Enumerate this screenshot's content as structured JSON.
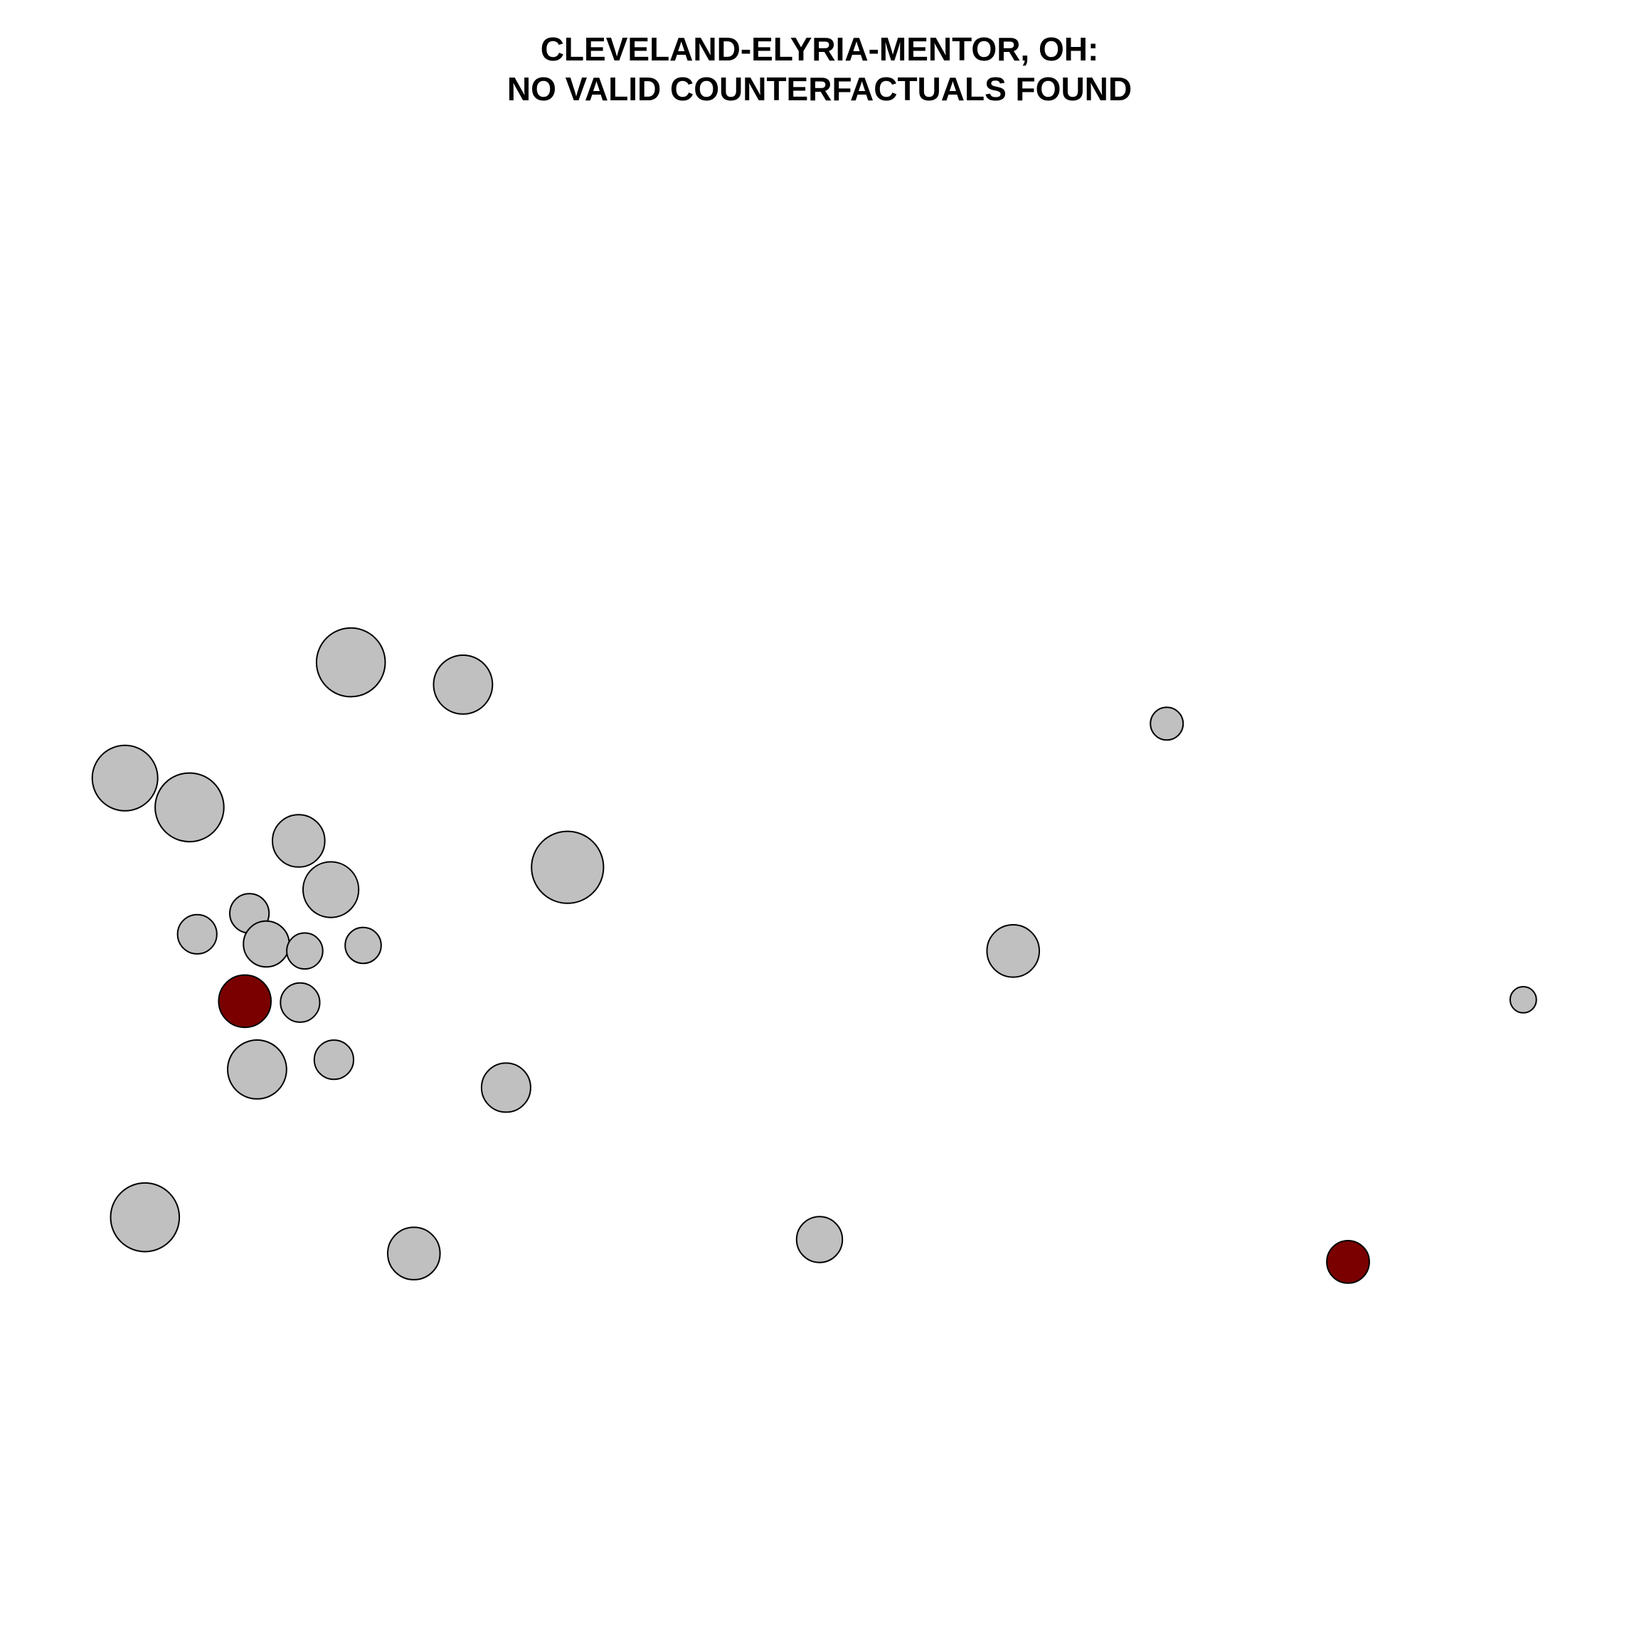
{
  "chart_data": {
    "type": "scatter",
    "title": [
      "CLEVELAND-ELYRIA-MENTOR, OH:",
      "NO VALID COUNTERFACTUALS FOUND"
    ],
    "xlabel": "",
    "ylabel": "",
    "axes_visible": false,
    "grid": false,
    "legend": "none",
    "xlim": [
      0,
      100
    ],
    "ylim": [
      0,
      100
    ],
    "colors": {
      "default": "#c0c0c0",
      "highlight": "#7a0000",
      "stroke": "#000000"
    },
    "points": [
      {
        "x": 19.5,
        "y": 62.7,
        "size": 2.1,
        "highlight": false
      },
      {
        "x": 26.8,
        "y": 61.1,
        "size": 1.8,
        "highlight": false
      },
      {
        "x": 4.8,
        "y": 54.4,
        "size": 2.0,
        "highlight": false
      },
      {
        "x": 9.0,
        "y": 52.3,
        "size": 2.1,
        "highlight": false
      },
      {
        "x": 16.1,
        "y": 49.9,
        "size": 1.6,
        "highlight": false
      },
      {
        "x": 33.6,
        "y": 48.0,
        "size": 2.2,
        "highlight": false
      },
      {
        "x": 18.2,
        "y": 46.4,
        "size": 1.7,
        "highlight": false
      },
      {
        "x": 12.9,
        "y": 44.7,
        "size": 1.2,
        "highlight": false
      },
      {
        "x": 9.5,
        "y": 43.2,
        "size": 1.2,
        "highlight": false
      },
      {
        "x": 14.0,
        "y": 42.5,
        "size": 1.4,
        "highlight": false
      },
      {
        "x": 16.5,
        "y": 42.0,
        "size": 1.1,
        "highlight": false
      },
      {
        "x": 20.3,
        "y": 42.4,
        "size": 1.1,
        "highlight": false
      },
      {
        "x": 62.6,
        "y": 42.0,
        "size": 1.6,
        "highlight": false
      },
      {
        "x": 72.6,
        "y": 58.3,
        "size": 1.0,
        "highlight": false
      },
      {
        "x": 95.8,
        "y": 38.5,
        "size": 0.8,
        "highlight": false
      },
      {
        "x": 12.6,
        "y": 38.4,
        "size": 1.6,
        "highlight": true
      },
      {
        "x": 16.2,
        "y": 38.3,
        "size": 1.2,
        "highlight": false
      },
      {
        "x": 13.4,
        "y": 33.5,
        "size": 1.8,
        "highlight": false
      },
      {
        "x": 18.4,
        "y": 34.2,
        "size": 1.2,
        "highlight": false
      },
      {
        "x": 29.6,
        "y": 32.2,
        "size": 1.5,
        "highlight": false
      },
      {
        "x": 6.1,
        "y": 22.9,
        "size": 2.1,
        "highlight": false
      },
      {
        "x": 23.6,
        "y": 20.3,
        "size": 1.6,
        "highlight": false
      },
      {
        "x": 50.0,
        "y": 21.3,
        "size": 1.4,
        "highlight": false
      },
      {
        "x": 84.4,
        "y": 19.7,
        "size": 1.3,
        "highlight": true
      }
    ]
  }
}
